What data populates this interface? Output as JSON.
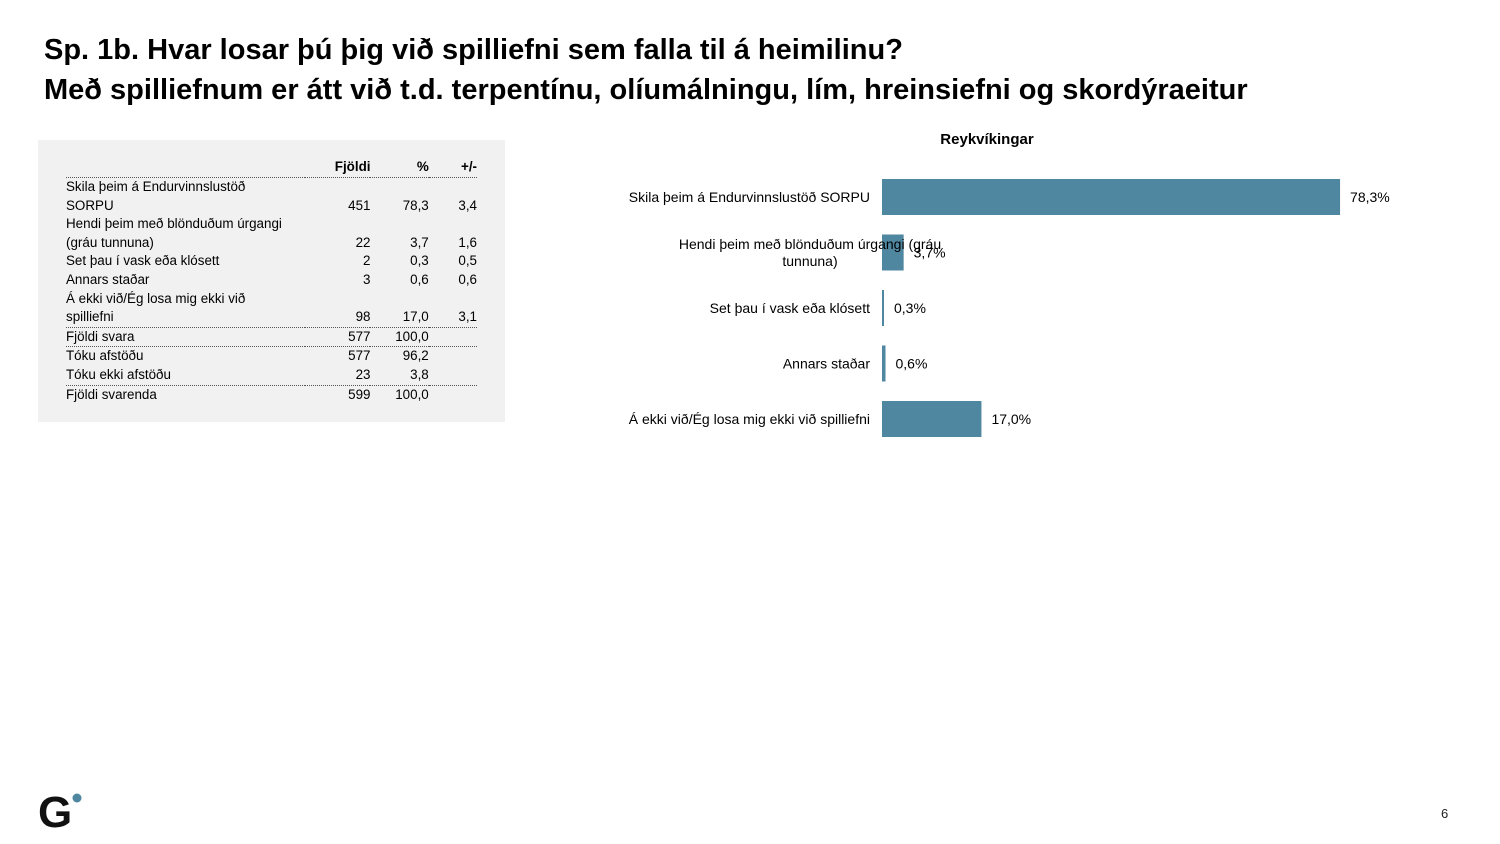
{
  "title": {
    "line1": "Sp. 1b. Hvar losar þú þig við spilliefni sem falla til á heimilinu?",
    "line2": "Með spilliefnum er átt við t.d. terpentínu, olíumálningu, lím, hreinsiefni og skordýraeitur"
  },
  "table": {
    "headers": [
      "",
      "Fjöldi",
      "%",
      "+/-"
    ],
    "rows": [
      {
        "label1": "Skila þeim á Endurvinnslustöð",
        "label2": "SORPU",
        "n": "451",
        "pct": "78,3",
        "pm": "3,4"
      },
      {
        "label1": "Hendi þeim með blönduðum úrgangi",
        "label2": "(gráu tunnuna)",
        "n": "22",
        "pct": "3,7",
        "pm": "1,6"
      },
      {
        "label": "Set þau í vask eða klósett",
        "n": "2",
        "pct": "0,3",
        "pm": "0,5"
      },
      {
        "label": "Annars staðar",
        "n": "3",
        "pct": "0,6",
        "pm": "0,6"
      },
      {
        "label1": "Á ekki við/Ég losa mig ekki við",
        "label2": "spilliefni",
        "n": "98",
        "pct": "17,0",
        "pm": "3,1"
      }
    ],
    "totals": [
      {
        "label": "Fjöldi svara",
        "n": "577",
        "pct": "100,0",
        "pm": ""
      },
      {
        "label": "Tóku afstöðu",
        "n": "577",
        "pct": "96,2",
        "pm": ""
      },
      {
        "label": "Tóku ekki afstöðu",
        "n": "23",
        "pct": "3,8",
        "pm": ""
      },
      {
        "label": "Fjöldi svarenda",
        "n": "599",
        "pct": "100,0",
        "pm": ""
      }
    ]
  },
  "chart_data": {
    "type": "bar",
    "orientation": "horizontal",
    "title": "Reykvíkingar",
    "categories": [
      [
        "Skila þeim á Endurvinnslustöð SORPU"
      ],
      [
        "Hendi þeim með blönduðum úrgangi (gráu",
        "tunnuna)"
      ],
      [
        "Set þau í vask eða klósett"
      ],
      [
        "Annars staðar"
      ],
      [
        "Á ekki við/Ég losa mig ekki við spilliefni"
      ]
    ],
    "values": [
      78.3,
      3.7,
      0.3,
      0.6,
      17.0
    ],
    "value_labels": [
      "78,3%",
      "3,7%",
      "0,3%",
      "0,6%",
      "17,0%"
    ],
    "xlim": [
      0,
      100
    ],
    "bar_color": "#4f86a0"
  },
  "footer": {
    "logo_text": "G",
    "logo_dot_color": "#4f86a0",
    "page_number": "6"
  }
}
